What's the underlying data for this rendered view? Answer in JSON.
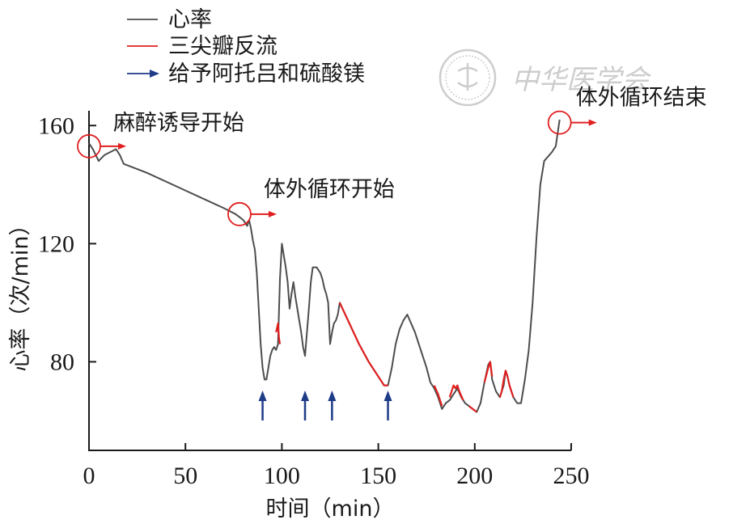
{
  "colors": {
    "heart_rate": "#4d4d4d",
    "tricuspid_regurgitation": "#e02020",
    "medication_arrow": "#1f3c88",
    "event_marker": "#e02020",
    "axis": "#1a1a1a",
    "watermark": "#c8c8c8"
  },
  "watermark": {
    "text": "中华医学会",
    "seal": "logo-seal"
  },
  "chart_data": {
    "type": "line",
    "xlabel": "时间（min）",
    "ylabel": "心率（次/min）",
    "xlim": [
      0,
      250
    ],
    "ylim": [
      50,
      165
    ],
    "xticks": [
      0,
      50,
      100,
      150,
      200,
      250
    ],
    "yticks": [
      80,
      120,
      160
    ],
    "grid": false,
    "legend_position": "top-left",
    "legend": [
      {
        "key": "heart_rate",
        "label": "心率",
        "symbol": "line"
      },
      {
        "key": "tricuspid_regurgitation",
        "label": "三尖瓣反流",
        "symbol": "line"
      },
      {
        "key": "medication",
        "label": "给予阿托吕和硫酸镁",
        "symbol": "arrow"
      }
    ],
    "series": [
      {
        "name": "心率",
        "key": "heart_rate",
        "points": [
          [
            0,
            154
          ],
          [
            2,
            152
          ],
          [
            5,
            148
          ],
          [
            8,
            150
          ],
          [
            11,
            151
          ],
          [
            14,
            152
          ],
          [
            16,
            150
          ],
          [
            18,
            147
          ],
          [
            30,
            144
          ],
          [
            50,
            138
          ],
          [
            70,
            132
          ],
          [
            76,
            130
          ],
          [
            78,
            129
          ],
          [
            80,
            128
          ],
          [
            81,
            127
          ],
          [
            82,
            126
          ],
          [
            83,
            128
          ],
          [
            84,
            125
          ],
          [
            85,
            121
          ],
          [
            86,
            118
          ],
          [
            87,
            110
          ],
          [
            88,
            98
          ],
          [
            89,
            86
          ],
          [
            90,
            78
          ],
          [
            91,
            74
          ],
          [
            92,
            74
          ],
          [
            93,
            78
          ],
          [
            94,
            82
          ],
          [
            95,
            84
          ],
          [
            96,
            85
          ],
          [
            97,
            84
          ],
          [
            98,
            86
          ],
          [
            99,
            108
          ],
          [
            100,
            120
          ],
          [
            101,
            116
          ],
          [
            102,
            112
          ],
          [
            103,
            107
          ],
          [
            104,
            98
          ],
          [
            105,
            103
          ],
          [
            106,
            107
          ],
          [
            107,
            102
          ],
          [
            108,
            98
          ],
          [
            109,
            94
          ],
          [
            110,
            90
          ],
          [
            111,
            85
          ],
          [
            112,
            82
          ],
          [
            113,
            90
          ],
          [
            114,
            98
          ],
          [
            115,
            107
          ],
          [
            116,
            112
          ],
          [
            118,
            112
          ],
          [
            119,
            111
          ],
          [
            120,
            110
          ],
          [
            121,
            108
          ],
          [
            122,
            105
          ],
          [
            123,
            103
          ],
          [
            124,
            100
          ],
          [
            125,
            86
          ],
          [
            126,
            90
          ],
          [
            127,
            93
          ],
          [
            128,
            94
          ],
          [
            129,
            96
          ],
          [
            130,
            100
          ],
          [
            135,
            93
          ],
          [
            140,
            86
          ],
          [
            145,
            80
          ],
          [
            150,
            75
          ],
          [
            153,
            72
          ],
          [
            155,
            72
          ],
          [
            157,
            78
          ],
          [
            159,
            86
          ],
          [
            161,
            91
          ],
          [
            163,
            94
          ],
          [
            165,
            96
          ],
          [
            167,
            93
          ],
          [
            169,
            90
          ],
          [
            171,
            86
          ],
          [
            173,
            82
          ],
          [
            175,
            78
          ],
          [
            177,
            73
          ],
          [
            179,
            71
          ],
          [
            181,
            68
          ],
          [
            183,
            64
          ],
          [
            185,
            66
          ],
          [
            187,
            67
          ],
          [
            189,
            69
          ],
          [
            191,
            71
          ],
          [
            193,
            68
          ],
          [
            195,
            66
          ],
          [
            197,
            65
          ],
          [
            199,
            64
          ],
          [
            201,
            63
          ],
          [
            203,
            66
          ],
          [
            205,
            73
          ],
          [
            207,
            79
          ],
          [
            208,
            80
          ],
          [
            209,
            74
          ],
          [
            211,
            70
          ],
          [
            213,
            68
          ],
          [
            215,
            72
          ],
          [
            216,
            77
          ],
          [
            217,
            75
          ],
          [
            218,
            72
          ],
          [
            220,
            68
          ],
          [
            222,
            66
          ],
          [
            224,
            66
          ],
          [
            225,
            70
          ],
          [
            226,
            74
          ],
          [
            228,
            84
          ],
          [
            230,
            100
          ],
          [
            232,
            122
          ],
          [
            234,
            140
          ],
          [
            236,
            148
          ],
          [
            240,
            151
          ],
          [
            242,
            153
          ],
          [
            244,
            162
          ]
        ]
      },
      {
        "name": "三尖瓣反流",
        "key": "tricuspid_regurgitation",
        "segments": [
          [
            [
              97,
              90
            ],
            [
              98,
              93
            ],
            [
              98.5,
              88
            ],
            [
              99,
              86
            ]
          ],
          [
            [
              130,
              100
            ],
            [
              135,
              93
            ],
            [
              140,
              86
            ],
            [
              145,
              80
            ],
            [
              150,
              75
            ],
            [
              153,
              72
            ],
            [
              155,
              72
            ]
          ],
          [
            [
              179,
              72
            ],
            [
              181,
              69
            ],
            [
              183,
              65
            ]
          ],
          [
            [
              187,
              68
            ],
            [
              188,
              70
            ],
            [
              189,
              72
            ],
            [
              190,
              71
            ],
            [
              191,
              72
            ],
            [
              192,
              70
            ],
            [
              194,
              67
            ]
          ],
          [
            [
              197,
              65
            ],
            [
              199,
              64
            ],
            [
              201,
              63
            ]
          ],
          [
            [
              205,
              73
            ],
            [
              207,
              78
            ],
            [
              208,
              80
            ],
            [
              209,
              75
            ]
          ],
          [
            [
              213,
              68
            ],
            [
              214,
              70
            ],
            [
              215,
              74
            ],
            [
              216,
              77
            ],
            [
              217,
              75
            ],
            [
              218,
              72
            ],
            [
              220,
              68
            ]
          ]
        ]
      }
    ],
    "medication_arrows_x": [
      90,
      112,
      126,
      155
    ],
    "events": [
      {
        "label": "麻醉诱导开始",
        "x": 0,
        "y": 153
      },
      {
        "label": "体外循环开始",
        "x": 78,
        "y": 130
      },
      {
        "label": "体外循环结束",
        "x": 244,
        "y": 161
      }
    ]
  }
}
